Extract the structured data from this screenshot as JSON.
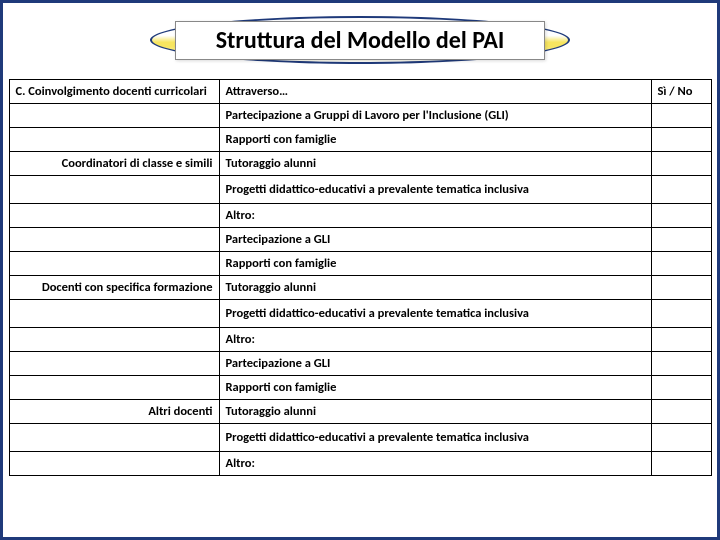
{
  "title": "Struttura del Modello del PAI",
  "header": {
    "left": "C. Coinvolgimento docenti curricolari",
    "mid": "Attraverso…",
    "right": "Sì / No"
  },
  "groups": [
    {
      "label": "Coordinatori di classe e simili",
      "label_row_index": 2,
      "rows": [
        "Partecipazione a Gruppi di Lavoro per l'Inclusione (GLI)",
        "Rapporti con famiglie",
        "Tutoraggio alunni",
        "Progetti didattico-educativi a prevalente tematica inclusiva",
        "Altro:"
      ]
    },
    {
      "label": "Docenti con specifica formazione",
      "label_row_index": 2,
      "rows": [
        "Partecipazione a GLI",
        "Rapporti con famiglie",
        "Tutoraggio alunni",
        "Progetti didattico-educativi a prevalente tematica inclusiva",
        "Altro:"
      ]
    },
    {
      "label": "Altri docenti",
      "label_row_index": 2,
      "rows": [
        "Partecipazione a GLI",
        "Rapporti con famiglie",
        "Tutoraggio alunni",
        "Progetti didattico-educativi a prevalente tematica inclusiva",
        "Altro:"
      ]
    }
  ],
  "colors": {
    "border_main": "#1f3a7a",
    "ellipse_fill": "#f7e560"
  }
}
